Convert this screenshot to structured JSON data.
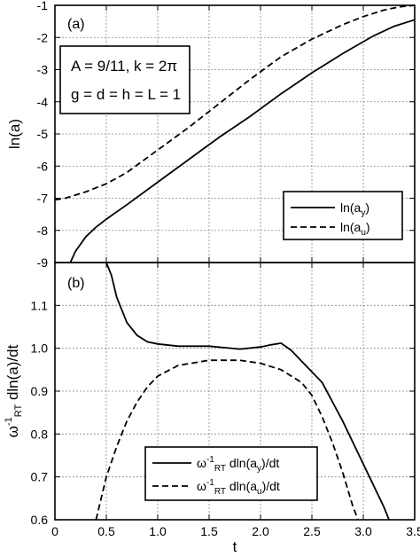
{
  "chart_data": [
    {
      "type": "line",
      "panel": "(a)",
      "ylabel": "ln(a)",
      "xlim": [
        0,
        3.5
      ],
      "ylim": [
        -9,
        -1
      ],
      "grid": true,
      "legend_position": "bottom-right",
      "annotation_lines": [
        "A = 9/11, k = 2π",
        "g = d = h = L = 1"
      ],
      "yticks": [
        "-9",
        "-8",
        "-7",
        "-6",
        "-5",
        "-4",
        "-3",
        "-2",
        "-1"
      ],
      "series": [
        {
          "name": "ln(ay)",
          "style": "solid",
          "x": [
            0.15,
            0.2,
            0.3,
            0.4,
            0.5,
            0.7,
            1.0,
            1.3,
            1.6,
            1.9,
            2.2,
            2.5,
            2.8,
            3.1,
            3.3,
            3.5
          ],
          "y": [
            -9.0,
            -8.65,
            -8.2,
            -7.9,
            -7.65,
            -7.2,
            -6.5,
            -5.8,
            -5.1,
            -4.45,
            -3.75,
            -3.1,
            -2.5,
            -1.95,
            -1.65,
            -1.45
          ]
        },
        {
          "name": "ln(au)",
          "style": "dashed",
          "x": [
            0.0,
            0.1,
            0.3,
            0.5,
            0.7,
            1.0,
            1.3,
            1.6,
            1.9,
            2.2,
            2.5,
            2.8,
            3.0,
            3.2,
            3.35,
            3.5
          ],
          "y": [
            -7.05,
            -7.0,
            -6.8,
            -6.55,
            -6.2,
            -5.5,
            -4.8,
            -4.05,
            -3.3,
            -2.6,
            -2.05,
            -1.6,
            -1.35,
            -1.15,
            -1.05,
            -1.0
          ]
        }
      ]
    },
    {
      "type": "line",
      "panel": "(b)",
      "xlabel": "t",
      "ylabel": "ω-1RT dln(a)/dt",
      "xlim": [
        0,
        3.5
      ],
      "ylim": [
        0.6,
        1.2
      ],
      "grid": true,
      "legend_position": "bottom-right",
      "xticks": [
        "0",
        "0.5",
        "1.0",
        "1.5",
        "2.0",
        "2.5",
        "3.0",
        "3.5"
      ],
      "yticks": [
        "0.6",
        "0.7",
        "0.8",
        "0.9",
        "1.0",
        "1.1"
      ],
      "series": [
        {
          "name": "ω-1RT dln(ay)/dt",
          "style": "solid",
          "x": [
            0.5,
            0.55,
            0.6,
            0.7,
            0.8,
            0.9,
            1.0,
            1.2,
            1.5,
            1.8,
            2.0,
            2.1,
            2.2,
            2.3,
            2.4,
            2.6,
            2.8,
            3.0,
            3.1,
            3.2,
            3.25
          ],
          "y": [
            1.2,
            1.17,
            1.12,
            1.06,
            1.03,
            1.015,
            1.01,
            1.005,
            1.005,
            0.998,
            1.003,
            1.008,
            1.012,
            0.995,
            0.97,
            0.92,
            0.83,
            0.73,
            0.68,
            0.63,
            0.6
          ]
        },
        {
          "name": "ω-1RT dln(au)/dt",
          "style": "dashed",
          "x": [
            0.4,
            0.45,
            0.5,
            0.6,
            0.7,
            0.8,
            0.9,
            1.0,
            1.2,
            1.5,
            1.8,
            2.0,
            2.2,
            2.4,
            2.5,
            2.6,
            2.7,
            2.8,
            2.9,
            2.95
          ],
          "y": [
            0.6,
            0.65,
            0.7,
            0.77,
            0.83,
            0.875,
            0.91,
            0.935,
            0.96,
            0.972,
            0.972,
            0.965,
            0.95,
            0.92,
            0.89,
            0.84,
            0.78,
            0.71,
            0.63,
            0.6
          ]
        }
      ]
    }
  ],
  "legend_a": [
    {
      "text": "ln(a",
      "sub": "y",
      "close": ")"
    },
    {
      "text": "ln(a",
      "sub": "u",
      "close": ")"
    }
  ],
  "legend_b": [
    {
      "pre": "ω",
      "sup": "-1",
      "sub1": "RT",
      "mid": " dln(a",
      "sub": "y",
      "close": ")/dt"
    },
    {
      "pre": "ω",
      "sup": "-1",
      "sub1": "RT",
      "mid": " dln(a",
      "sub": "u",
      "close": ")/dt"
    }
  ]
}
